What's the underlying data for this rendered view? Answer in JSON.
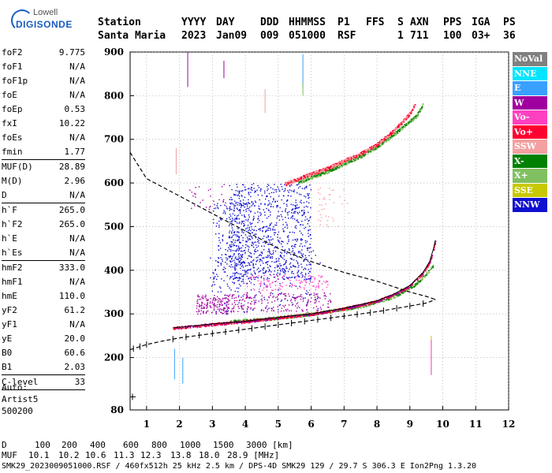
{
  "logo": {
    "line1": "Lowell",
    "line2": "DIGISONDE"
  },
  "header": {
    "labels": [
      "Station",
      "YYYY",
      "DAY",
      "DDD",
      "HHMMSS",
      "P1",
      "FFS",
      "S",
      "AXN",
      "PPS",
      "IGA",
      "PS"
    ],
    "values": [
      "Santa Maria",
      "2023",
      "Jan09",
      "009",
      "051000",
      "RSF",
      "1",
      "711",
      "100",
      "03+",
      "36"
    ]
  },
  "params": [
    [
      [
        "foF2",
        "9.775"
      ],
      [
        "foF1",
        "N/A"
      ],
      [
        "foF1p",
        "N/A"
      ],
      [
        "foE",
        "N/A"
      ],
      [
        "foEp",
        "0.53"
      ],
      [
        "fxI",
        "10.22"
      ],
      [
        "foEs",
        "N/A"
      ],
      [
        "fmin",
        "1.77"
      ]
    ],
    [
      [
        "MUF(D)",
        "28.89"
      ],
      [
        "M(D)",
        "2.96"
      ],
      [
        "D",
        "N/A"
      ]
    ],
    [
      [
        "h`F",
        "265.0"
      ],
      [
        "h`F2",
        "265.0"
      ],
      [
        "h`E",
        "N/A"
      ],
      [
        "h`Es",
        "N/A"
      ]
    ],
    [
      [
        "hmF2",
        "333.0"
      ],
      [
        "hmF1",
        "N/A"
      ],
      [
        "hmE",
        "110.0"
      ],
      [
        "yF2",
        "61.2"
      ],
      [
        "yF1",
        "N/A"
      ],
      [
        "yE",
        "20.0"
      ],
      [
        "B0",
        "60.6"
      ],
      [
        "B1",
        "2.03"
      ]
    ],
    [
      [
        "C-level",
        "33"
      ]
    ]
  ],
  "auto": [
    "Auto:",
    "Artist5",
    "500200"
  ],
  "legend": [
    {
      "label": "NoVal",
      "color": "#808080"
    },
    {
      "label": "NNE",
      "color": "#00e5ff"
    },
    {
      "label": "E",
      "color": "#3aa0ff"
    },
    {
      "label": "W",
      "color": "#a000a0"
    },
    {
      "label": "Vo-",
      "color": "#ff40c0"
    },
    {
      "label": "Vo+",
      "color": "#ff0030"
    },
    {
      "label": "SSW",
      "color": "#f4a0a0"
    },
    {
      "label": "X-",
      "color": "#008000"
    },
    {
      "label": "X+",
      "color": "#80c060"
    },
    {
      "label": "SSE",
      "color": "#c8c800"
    },
    {
      "label": "NNW",
      "color": "#1010d0"
    }
  ],
  "bottom": {
    "d_label": "D",
    "d_values": [
      "100",
      "200",
      "400",
      "600",
      "800",
      "1000",
      "1500",
      "3000 [km]"
    ],
    "muf_label": "MUF",
    "muf_values": [
      "10.1",
      "10.2",
      "10.6",
      "11.3",
      "12.3",
      "13.8",
      "18.0",
      "28.9 [MHz]"
    ]
  },
  "footer": "SMK29_2023009051000.RSF / 460fx512h 25 kHz 2.5 km / DPS-4D SMK29 129 / 29.7 S 306.3 E Ion2Png 1.3.20",
  "chart_data": {
    "type": "scatter",
    "xlim": [
      0.5,
      12
    ],
    "ylim": [
      80,
      900
    ],
    "xticks": [
      1,
      2,
      3,
      4,
      5,
      6,
      7,
      8,
      9,
      10,
      11,
      12
    ],
    "yticks": [
      80,
      200,
      300,
      400,
      500,
      600,
      700,
      800,
      900
    ],
    "grid": "dotted",
    "legend_placement": "right",
    "profile": [
      [
        0.5,
        670
      ],
      [
        1,
        610
      ],
      [
        1.5,
        590
      ],
      [
        2,
        570
      ],
      [
        3,
        530
      ],
      [
        4,
        490
      ],
      [
        5,
        450
      ],
      [
        6,
        420
      ],
      [
        7,
        395
      ],
      [
        8,
        375
      ],
      [
        9,
        350
      ],
      [
        9.5,
        340
      ],
      [
        9.78,
        333
      ]
    ],
    "profile_lower": [
      [
        0.5,
        218
      ],
      [
        1,
        230
      ],
      [
        1.5,
        238
      ],
      [
        2,
        245
      ],
      [
        3,
        255
      ],
      [
        4,
        265
      ],
      [
        5,
        275
      ],
      [
        6,
        285
      ],
      [
        7,
        295
      ],
      [
        8,
        305
      ],
      [
        9,
        318
      ],
      [
        9.5,
        325
      ],
      [
        9.78,
        333
      ]
    ],
    "o_trace": [
      [
        1.8,
        268
      ],
      [
        2.5,
        273
      ],
      [
        3,
        277
      ],
      [
        4,
        283
      ],
      [
        5,
        292
      ],
      [
        6,
        300
      ],
      [
        7,
        313
      ],
      [
        8,
        330
      ],
      [
        8.5,
        345
      ],
      [
        9,
        365
      ],
      [
        9.4,
        395
      ],
      [
        9.6,
        420
      ],
      [
        9.72,
        450
      ],
      [
        9.77,
        468
      ]
    ],
    "x_trace": [
      [
        3.5,
        283
      ],
      [
        4.5,
        288
      ],
      [
        5.5,
        296
      ],
      [
        6.5,
        306
      ],
      [
        7.5,
        318
      ],
      [
        8.5,
        340
      ],
      [
        9.2,
        370
      ],
      [
        9.7,
        410
      ]
    ],
    "o_multi": [
      [
        5.2,
        598
      ],
      [
        6,
        622
      ],
      [
        6.5,
        635
      ],
      [
        7,
        652
      ],
      [
        7.5,
        668
      ],
      [
        8,
        690
      ],
      [
        8.5,
        720
      ],
      [
        9,
        760
      ],
      [
        9.15,
        782
      ]
    ],
    "x_multi": [
      [
        5.6,
        602
      ],
      [
        6.5,
        628
      ],
      [
        7,
        645
      ],
      [
        7.5,
        662
      ],
      [
        8,
        684
      ],
      [
        8.5,
        712
      ],
      [
        9.2,
        755
      ],
      [
        9.4,
        782
      ]
    ]
  }
}
